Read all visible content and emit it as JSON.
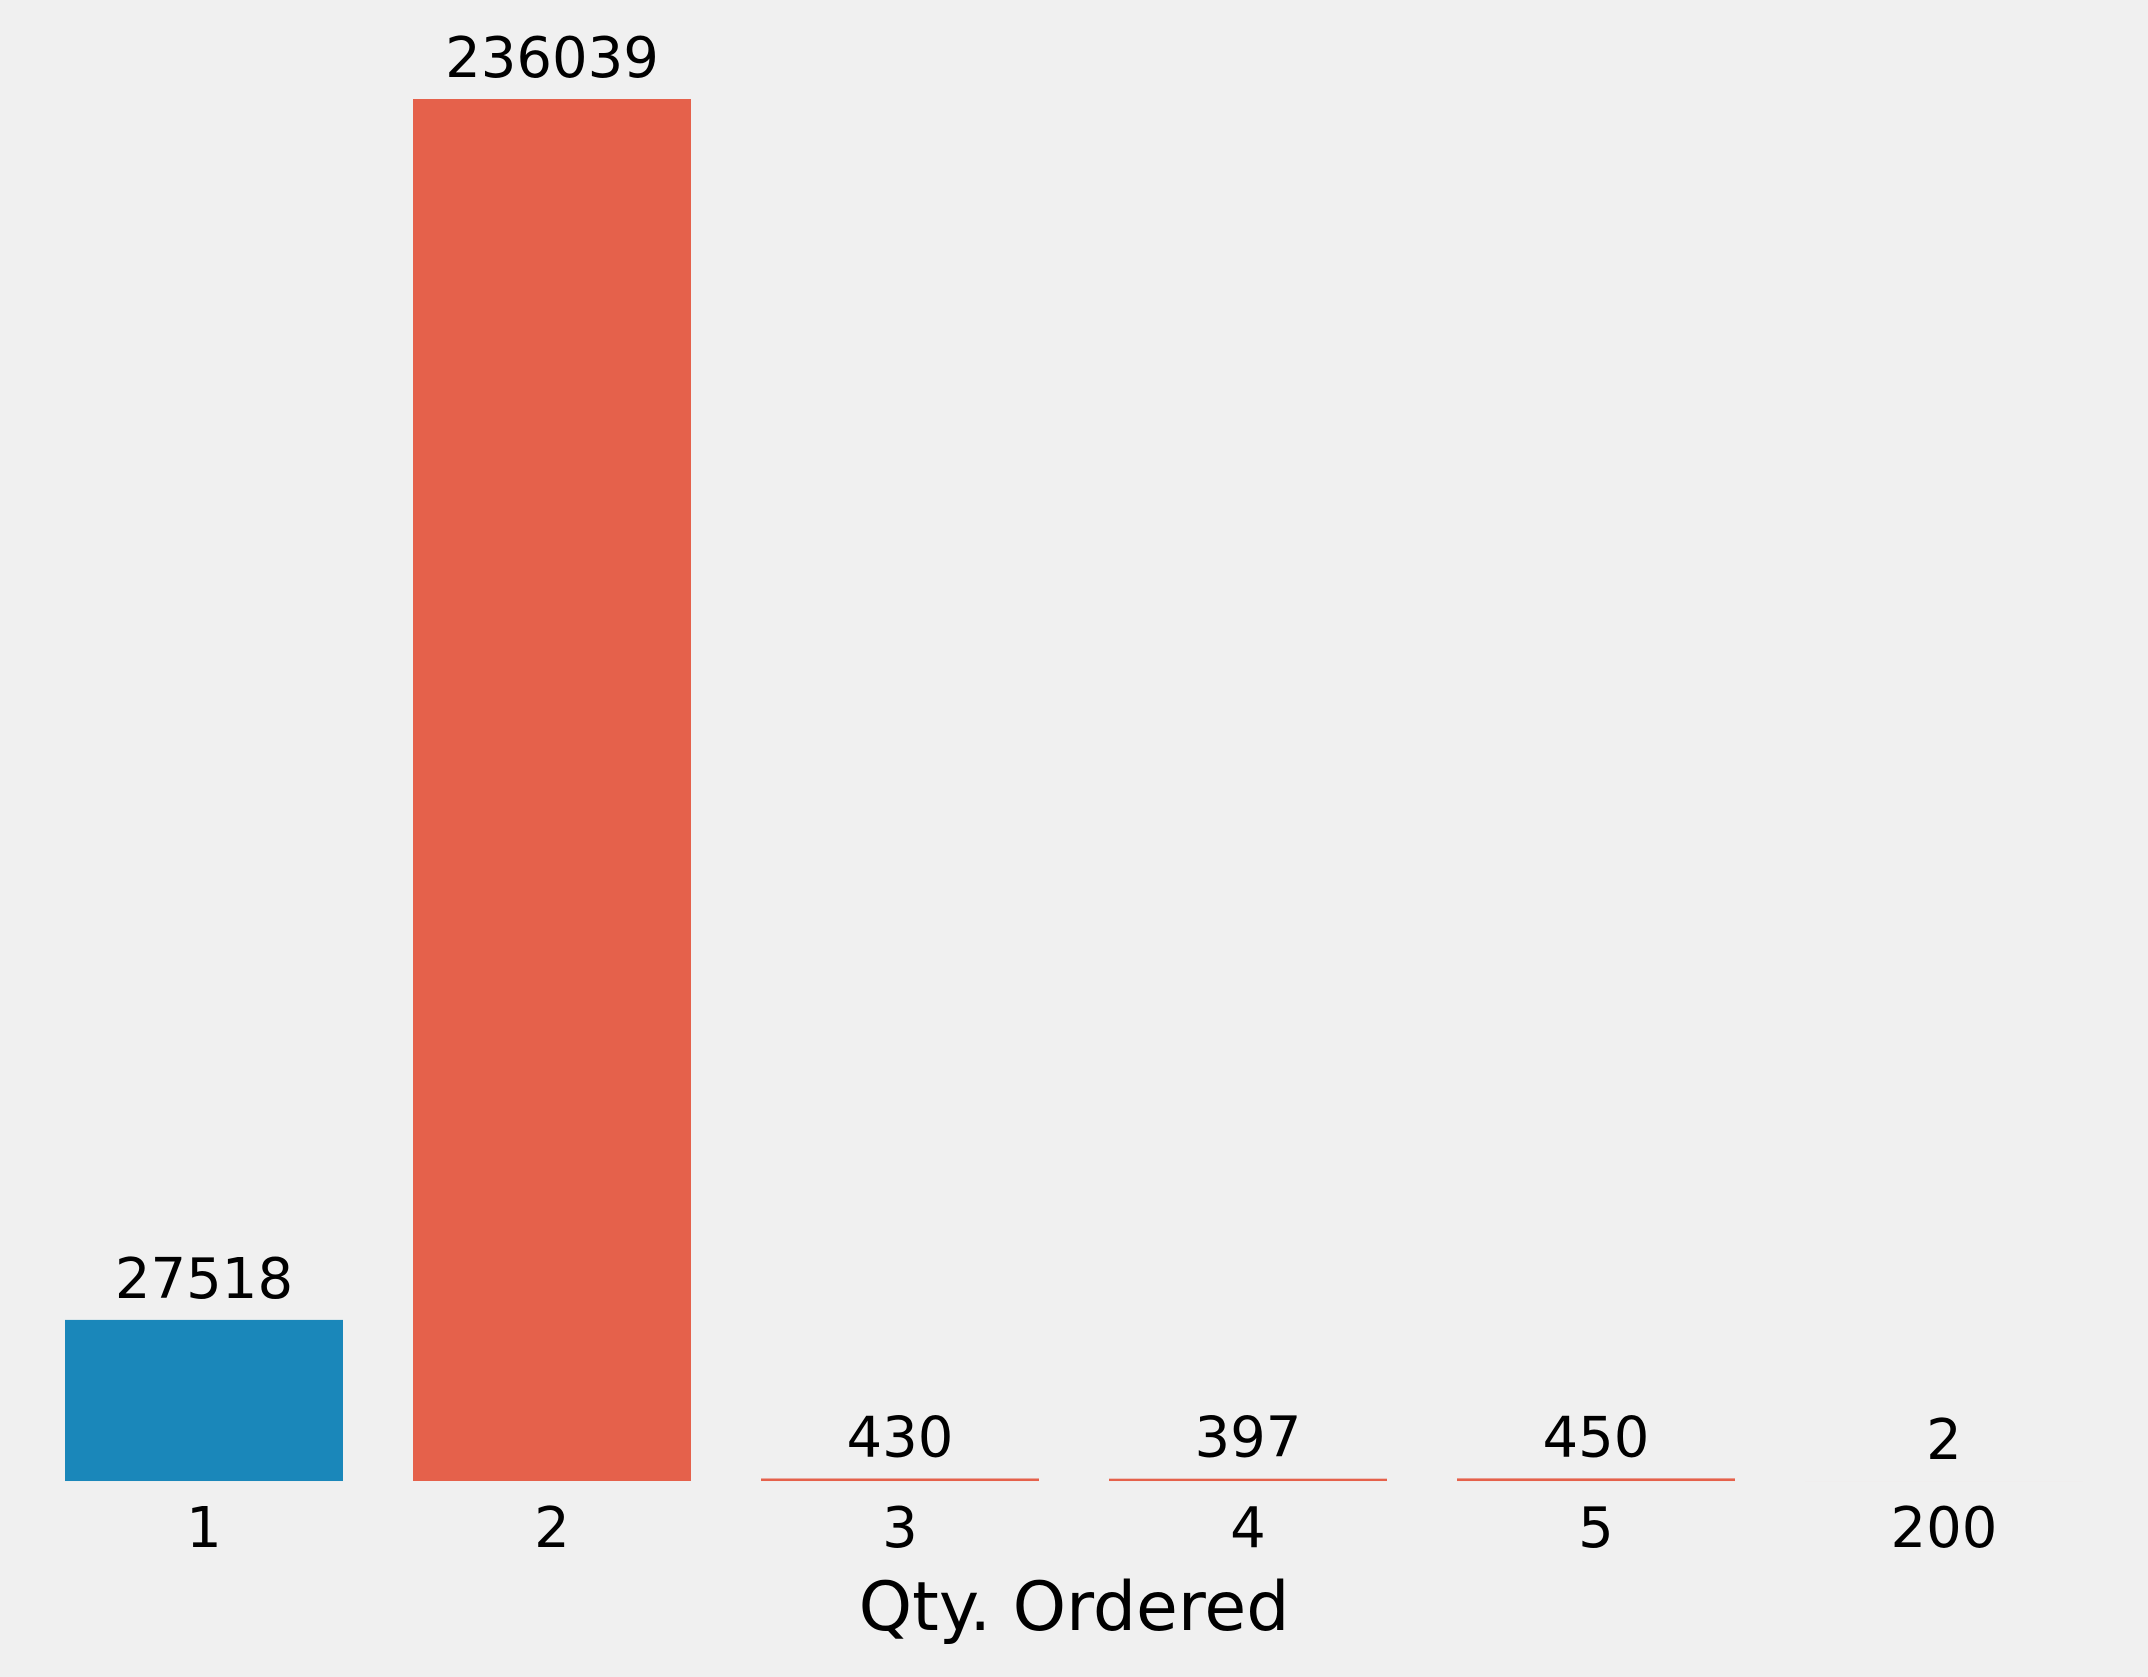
{
  "chart_data": {
    "type": "bar",
    "categories": [
      "1",
      "2",
      "3",
      "4",
      "5",
      "200"
    ],
    "values": [
      27518,
      236039,
      430,
      397,
      450,
      2
    ],
    "data_labels": [
      "27518",
      "236039",
      "430",
      "397",
      "450",
      "2"
    ],
    "title": "",
    "xlabel": "Qty. Ordered",
    "ylabel": "",
    "ylim": [
      0,
      236039
    ],
    "grid": false,
    "legend": "none",
    "colors": [
      "#1a87ba",
      "#e5614b",
      "#e5614b",
      "#e5614b",
      "#e5614b",
      "#e5614b"
    ]
  },
  "background_color": "#f0f0f0"
}
